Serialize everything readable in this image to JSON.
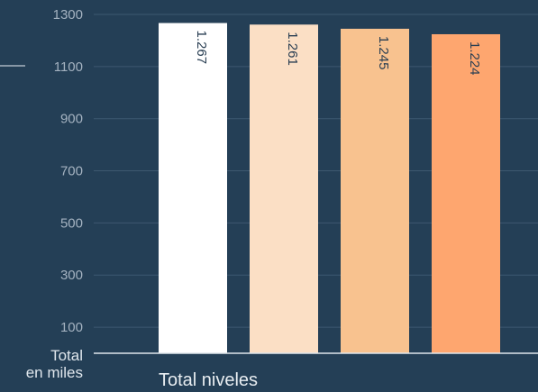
{
  "chart_data": {
    "type": "bar",
    "categories": [
      "Total niveles"
    ],
    "series": [
      {
        "values": [
          1267
        ],
        "labels": [
          "1.267"
        ],
        "color": "#ffffff"
      },
      {
        "values": [
          1261
        ],
        "labels": [
          "1.261"
        ],
        "color": "#fbdfc5"
      },
      {
        "values": [
          1245
        ],
        "labels": [
          "1.245"
        ],
        "color": "#f8c28f"
      },
      {
        "values": [
          1224
        ],
        "labels": [
          "1.224"
        ],
        "color": "#fea66f"
      }
    ],
    "y_ticks": [
      1300,
      1100,
      900,
      700,
      500,
      300,
      100
    ],
    "ylim": [
      0,
      1300
    ],
    "ylabel_line1": "Total",
    "ylabel_line2": "en miles",
    "gridlines": true,
    "colors": {
      "background": "#243f56",
      "grid": "#3d5870",
      "axis": "#dfe6ec",
      "legend_dash": "#8797a6"
    }
  }
}
